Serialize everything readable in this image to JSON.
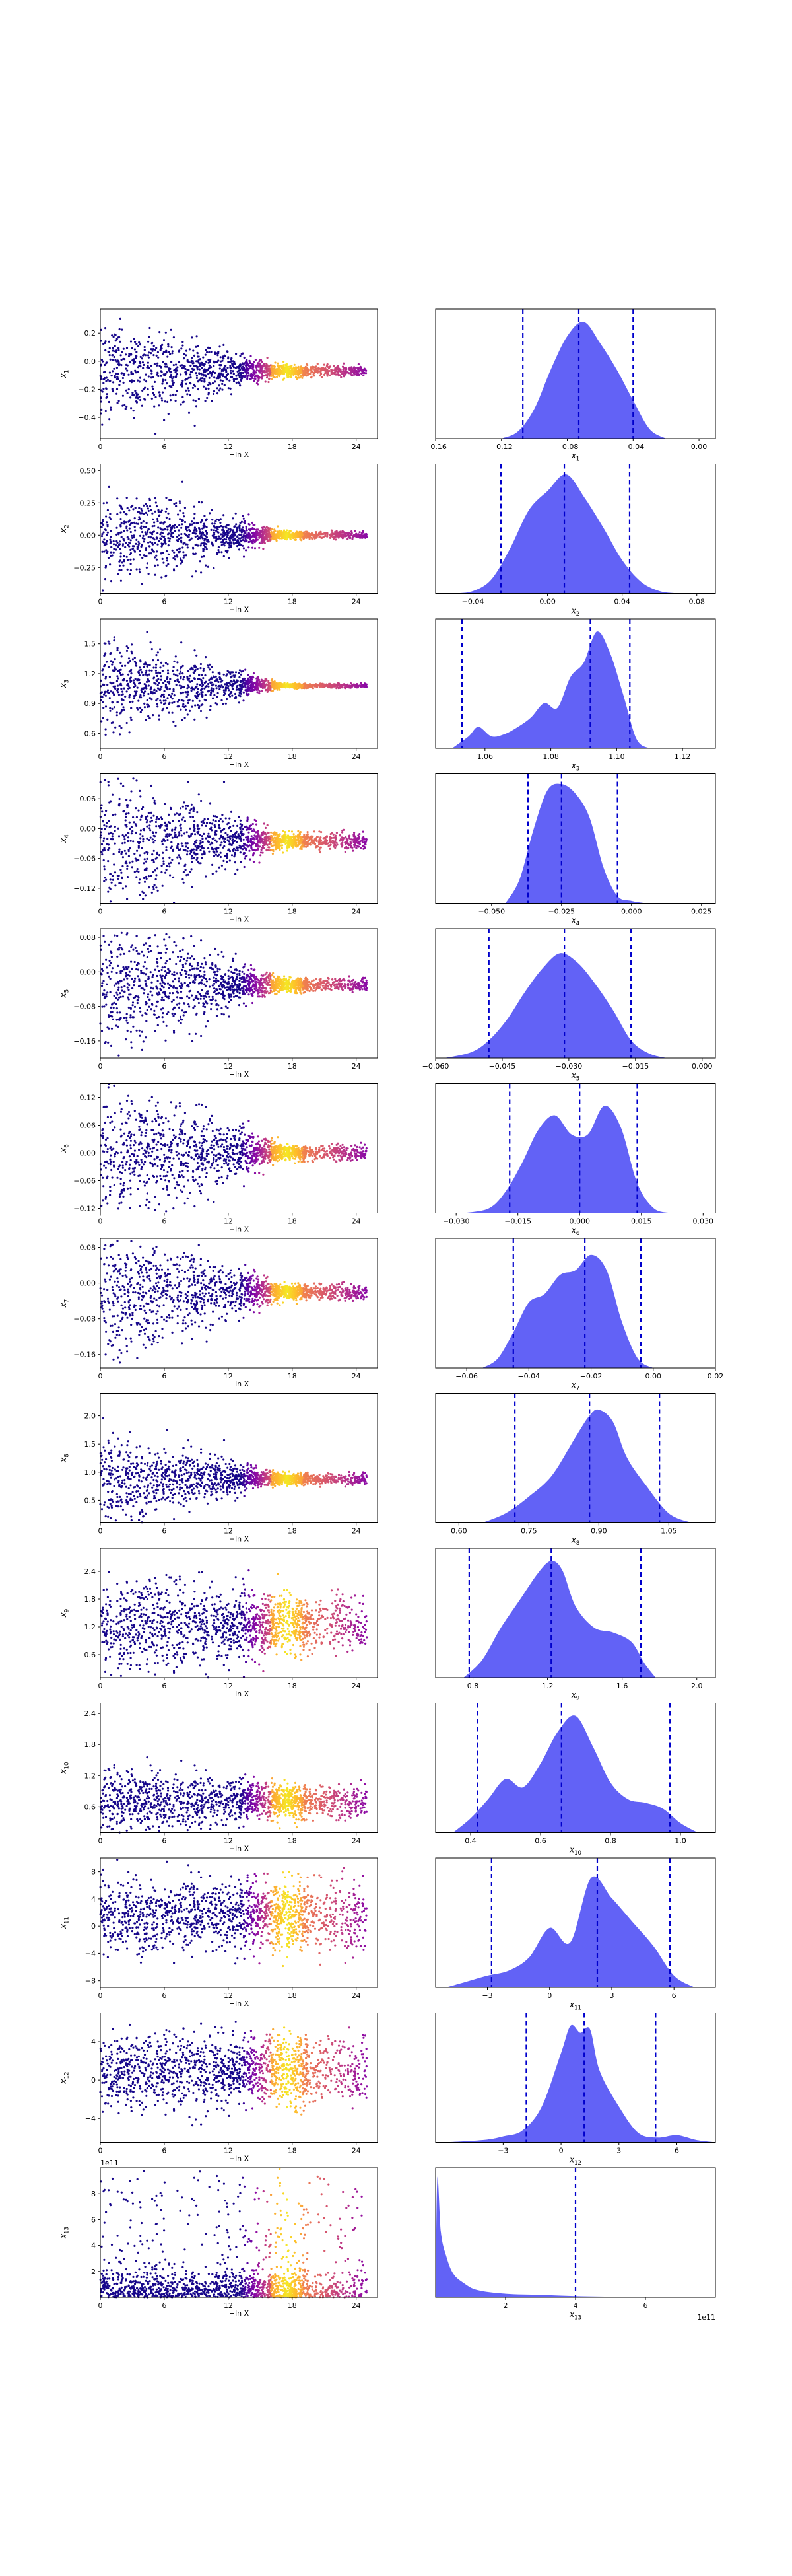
{
  "figure": {
    "background": "#ffffff",
    "scatter_colormap": "plasma",
    "posterior_fill": "#5a5af5",
    "interval_line_color": "#0000cc",
    "left_xlabel": "−ln X",
    "left_xticks": [
      "0",
      "6",
      "12",
      "18",
      "24"
    ],
    "left_xlim": [
      0,
      26
    ]
  },
  "chart_data": [
    {
      "type": "scatter",
      "ylabel": "x_1",
      "yticks": [
        "0.2",
        "0.0",
        "−0.2",
        "−0.4"
      ],
      "ylim": [
        -0.55,
        0.37
      ],
      "center": -0.07,
      "spread0": 0.18,
      "spread1": 0.02
    },
    {
      "type": "area",
      "xlabel": "x_1",
      "xticks": [
        "−0.16",
        "−0.12",
        "−0.08",
        "−0.04",
        "0.00"
      ],
      "xlim": [
        -0.16,
        0.01
      ],
      "x": [
        -0.12,
        -0.11,
        -0.1,
        -0.09,
        -0.08,
        -0.07,
        -0.06,
        -0.05,
        -0.04,
        -0.03,
        -0.02
      ],
      "y": [
        0.0,
        0.06,
        0.25,
        0.58,
        0.86,
        0.98,
        0.8,
        0.58,
        0.32,
        0.08,
        0.0
      ],
      "vlines": [
        -0.107,
        -0.073,
        -0.04
      ]
    },
    {
      "type": "scatter",
      "ylabel": "x_2",
      "yticks": [
        "0.50",
        "0.25",
        "0.00",
        "−0.25"
      ],
      "ylim": [
        -0.45,
        0.55
      ],
      "center": 0.0,
      "spread0": 0.2,
      "spread1": 0.015
    },
    {
      "type": "area",
      "xlabel": "x_2",
      "xticks": [
        "−0.04",
        "0.00",
        "0.04",
        "0.08"
      ],
      "xlim": [
        -0.06,
        0.09
      ],
      "x": [
        -0.05,
        -0.04,
        -0.03,
        -0.02,
        -0.01,
        0.0,
        0.01,
        0.02,
        0.03,
        0.04,
        0.05,
        0.06,
        0.07
      ],
      "y": [
        0.0,
        0.02,
        0.12,
        0.38,
        0.7,
        0.86,
        1.0,
        0.8,
        0.55,
        0.28,
        0.1,
        0.02,
        0.0
      ],
      "vlines": [
        -0.025,
        0.009,
        0.044
      ]
    },
    {
      "type": "scatter",
      "ylabel": "x_3",
      "yticks": [
        "1.5",
        "1.2",
        "0.9",
        "0.6"
      ],
      "ylim": [
        0.45,
        1.75
      ],
      "center": 1.08,
      "spread0": 0.25,
      "spread1": 0.01
    },
    {
      "type": "area",
      "xlabel": "x_3",
      "xticks": [
        "1.06",
        "1.08",
        "1.10",
        "1.12"
      ],
      "xlim": [
        1.045,
        1.13
      ],
      "x": [
        1.05,
        1.055,
        1.058,
        1.062,
        1.066,
        1.07,
        1.074,
        1.078,
        1.082,
        1.086,
        1.09,
        1.094,
        1.098,
        1.102,
        1.106,
        1.11
      ],
      "y": [
        0.0,
        0.1,
        0.18,
        0.1,
        0.12,
        0.18,
        0.26,
        0.38,
        0.34,
        0.6,
        0.72,
        0.98,
        0.8,
        0.45,
        0.08,
        0.0
      ],
      "vlines": [
        1.053,
        1.092,
        1.104
      ]
    },
    {
      "type": "scatter",
      "ylabel": "x_4",
      "yticks": [
        "0.06",
        "0.00",
        "−0.06",
        "−0.12"
      ],
      "ylim": [
        -0.15,
        0.11
      ],
      "center": -0.025,
      "spread0": 0.07,
      "spread1": 0.008
    },
    {
      "type": "area",
      "xlabel": "x_4",
      "xticks": [
        "−0.050",
        "−0.025",
        "0.000",
        "0.025"
      ],
      "xlim": [
        -0.07,
        0.03
      ],
      "x": [
        -0.045,
        -0.04,
        -0.035,
        -0.03,
        -0.025,
        -0.02,
        -0.015,
        -0.01,
        -0.005,
        0.0,
        0.005
      ],
      "y": [
        0.0,
        0.2,
        0.62,
        0.95,
        1.0,
        0.92,
        0.72,
        0.3,
        0.06,
        0.02,
        0.0
      ],
      "vlines": [
        -0.037,
        -0.025,
        -0.005
      ]
    },
    {
      "type": "scatter",
      "ylabel": "x_5",
      "yticks": [
        "0.08",
        "0.00",
        "−0.08",
        "−0.16"
      ],
      "ylim": [
        -0.2,
        0.1
      ],
      "center": -0.03,
      "spread0": 0.08,
      "spread1": 0.008
    },
    {
      "type": "area",
      "xlabel": "x_5",
      "xticks": [
        "−0.060",
        "−0.045",
        "−0.030",
        "−0.015",
        "0.000"
      ],
      "xlim": [
        -0.06,
        0.003
      ],
      "x": [
        -0.058,
        -0.052,
        -0.048,
        -0.044,
        -0.04,
        -0.036,
        -0.032,
        -0.028,
        -0.024,
        -0.02,
        -0.016,
        -0.012,
        -0.008
      ],
      "y": [
        0.0,
        0.05,
        0.15,
        0.32,
        0.55,
        0.75,
        0.88,
        0.8,
        0.62,
        0.4,
        0.15,
        0.04,
        0.0
      ],
      "vlines": [
        -0.048,
        -0.031,
        -0.016
      ]
    },
    {
      "type": "scatter",
      "ylabel": "x_6",
      "yticks": [
        "0.12",
        "0.06",
        "0.00",
        "−0.06",
        "−0.12"
      ],
      "ylim": [
        -0.13,
        0.15
      ],
      "center": 0.0,
      "spread0": 0.08,
      "spread1": 0.008
    },
    {
      "type": "area",
      "xlabel": "x_6",
      "xticks": [
        "−0.030",
        "−0.015",
        "0.000",
        "0.015",
        "0.030"
      ],
      "xlim": [
        -0.035,
        0.033
      ],
      "x": [
        -0.028,
        -0.022,
        -0.018,
        -0.014,
        -0.01,
        -0.006,
        -0.002,
        0.002,
        0.006,
        0.01,
        0.014,
        0.018,
        0.022
      ],
      "y": [
        0.0,
        0.04,
        0.18,
        0.42,
        0.7,
        0.82,
        0.66,
        0.66,
        0.9,
        0.72,
        0.25,
        0.04,
        0.0
      ],
      "vlines": [
        -0.017,
        0.0,
        0.014
      ]
    },
    {
      "type": "scatter",
      "ylabel": "x_7",
      "yticks": [
        "0.08",
        "0.00",
        "−0.08",
        "−0.16"
      ],
      "ylim": [
        -0.19,
        0.1
      ],
      "center": -0.02,
      "spread0": 0.08,
      "spread1": 0.008
    },
    {
      "type": "area",
      "xlabel": "x_7",
      "xticks": [
        "−0.06",
        "−0.04",
        "−0.02",
        "0.00",
        "0.02"
      ],
      "xlim": [
        -0.07,
        0.02
      ],
      "x": [
        -0.055,
        -0.05,
        -0.045,
        -0.04,
        -0.035,
        -0.03,
        -0.025,
        -0.02,
        -0.015,
        -0.01,
        -0.005,
        0.0
      ],
      "y": [
        0.0,
        0.08,
        0.3,
        0.55,
        0.62,
        0.78,
        0.82,
        0.95,
        0.82,
        0.38,
        0.08,
        0.0
      ],
      "vlines": [
        -0.045,
        -0.022,
        -0.004
      ]
    },
    {
      "type": "scatter",
      "ylabel": "x_8",
      "yticks": [
        "2.0",
        "1.5",
        "1.0",
        "0.5"
      ],
      "ylim": [
        0.1,
        2.4
      ],
      "center": 0.88,
      "spread0": 0.4,
      "spread1": 0.05
    },
    {
      "type": "area",
      "xlabel": "x_8",
      "xticks": [
        "0.60",
        "0.75",
        "0.90",
        "1.05"
      ],
      "xlim": [
        0.55,
        1.15
      ],
      "x": [
        0.65,
        0.7,
        0.75,
        0.8,
        0.85,
        0.88,
        0.9,
        0.93,
        0.96,
        1.0,
        1.05,
        1.1
      ],
      "y": [
        0.0,
        0.08,
        0.22,
        0.4,
        0.72,
        0.9,
        0.95,
        0.85,
        0.55,
        0.32,
        0.08,
        0.0
      ],
      "vlines": [
        0.72,
        0.88,
        1.03
      ]
    },
    {
      "type": "scatter",
      "ylabel": "x_9",
      "yticks": [
        "2.4",
        "1.8",
        "1.2",
        "0.6"
      ],
      "ylim": [
        0.1,
        2.9
      ],
      "center": 1.25,
      "spread0": 0.6,
      "spread1": 0.3
    },
    {
      "type": "area",
      "xlabel": "x_9",
      "xticks": [
        "0.8",
        "1.2",
        "1.6",
        "2.0"
      ],
      "xlim": [
        0.6,
        2.1
      ],
      "x": [
        0.75,
        0.85,
        0.95,
        1.05,
        1.15,
        1.22,
        1.28,
        1.35,
        1.45,
        1.55,
        1.65,
        1.72,
        1.78
      ],
      "y": [
        0.0,
        0.15,
        0.42,
        0.65,
        0.88,
        0.98,
        0.9,
        0.6,
        0.42,
        0.38,
        0.3,
        0.12,
        0.0
      ],
      "vlines": [
        0.78,
        1.22,
        1.7
      ]
    },
    {
      "type": "scatter",
      "ylabel": "x_10",
      "yticks": [
        "2.4",
        "1.8",
        "1.2",
        "0.6"
      ],
      "ylim": [
        0.1,
        2.6
      ],
      "center": 0.7,
      "spread0": 0.35,
      "spread1": 0.15
    },
    {
      "type": "area",
      "xlabel": "x_10",
      "xticks": [
        "0.4",
        "0.6",
        "0.8",
        "1.0"
      ],
      "xlim": [
        0.3,
        1.1
      ],
      "x": [
        0.35,
        0.4,
        0.45,
        0.5,
        0.55,
        0.6,
        0.65,
        0.7,
        0.75,
        0.8,
        0.85,
        0.9,
        0.95,
        1.0,
        1.05
      ],
      "y": [
        0.0,
        0.12,
        0.28,
        0.45,
        0.38,
        0.58,
        0.85,
        0.98,
        0.72,
        0.42,
        0.28,
        0.25,
        0.2,
        0.08,
        0.0
      ],
      "vlines": [
        0.42,
        0.66,
        0.97
      ]
    },
    {
      "type": "scatter",
      "ylabel": "x_11",
      "yticks": [
        "8",
        "4",
        "0",
        "−4",
        "−8"
      ],
      "ylim": [
        -9,
        10
      ],
      "center": 1.5,
      "spread0": 2.5,
      "spread1": 2.5
    },
    {
      "type": "area",
      "xlabel": "x_11",
      "xticks": [
        "−3",
        "0",
        "3",
        "6"
      ],
      "xlim": [
        -5.5,
        8
      ],
      "x": [
        -5,
        -4,
        -3,
        -2,
        -1,
        0,
        1,
        2,
        3,
        4,
        5,
        6,
        7
      ],
      "y": [
        0.0,
        0.05,
        0.1,
        0.14,
        0.25,
        0.5,
        0.38,
        0.92,
        0.75,
        0.55,
        0.35,
        0.1,
        0.0
      ],
      "vlines": [
        -2.8,
        2.3,
        5.8
      ]
    },
    {
      "type": "scatter",
      "ylabel": "x_12",
      "yticks": [
        "4",
        "0",
        "−4"
      ],
      "ylim": [
        -6.5,
        7
      ],
      "center": 1.0,
      "spread0": 2.0,
      "spread1": 1.8
    },
    {
      "type": "area",
      "xlabel": "x_12",
      "xticks": [
        "−3",
        "0",
        "3",
        "6"
      ],
      "xlim": [
        -6.5,
        8
      ],
      "x": [
        -6,
        -4,
        -3,
        -2,
        -1,
        0,
        0.5,
        1,
        1.5,
        2,
        3,
        4,
        5,
        6,
        7,
        8
      ],
      "y": [
        0.0,
        0.02,
        0.05,
        0.1,
        0.3,
        0.75,
        0.98,
        0.92,
        0.95,
        0.6,
        0.3,
        0.08,
        0.04,
        0.06,
        0.02,
        0.0
      ],
      "vlines": [
        -1.8,
        1.2,
        4.9
      ]
    },
    {
      "type": "scatter",
      "ylabel": "x_13",
      "yticks": [
        "8",
        "6",
        "4",
        "2"
      ],
      "ylim": [
        0,
        10
      ],
      "offset_text": "1e11",
      "center": 0.3,
      "spread0": 3.0,
      "spread1": 2.5
    },
    {
      "type": "area",
      "xlabel": "x_13",
      "xticks": [
        "2",
        "4",
        "6"
      ],
      "xlim": [
        0,
        8
      ],
      "offset_text": "1e11",
      "x": [
        0,
        0.05,
        0.15,
        0.3,
        0.5,
        0.8,
        1.2,
        2,
        3,
        4,
        5,
        6,
        8
      ],
      "y": [
        0.0,
        1.0,
        0.55,
        0.35,
        0.2,
        0.12,
        0.06,
        0.03,
        0.02,
        0.01,
        0.005,
        0.003,
        0.0
      ],
      "vlines": [
        4.0
      ]
    }
  ]
}
